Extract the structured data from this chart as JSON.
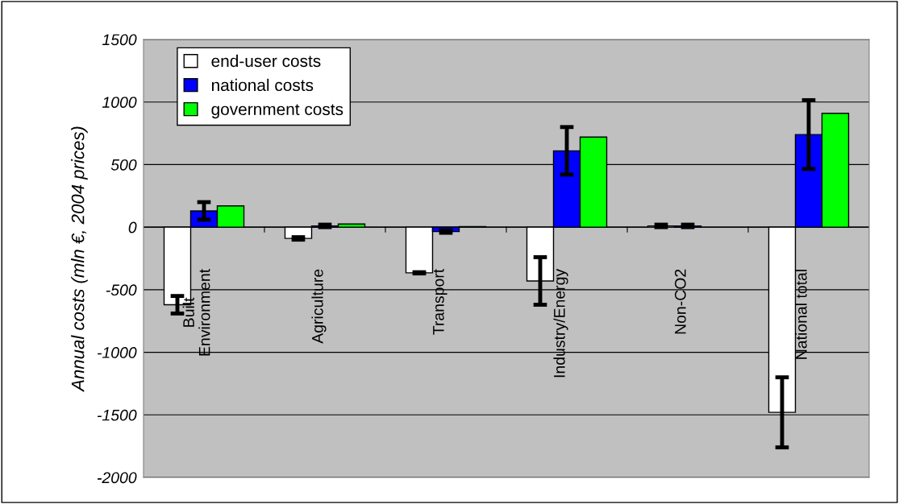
{
  "chart_data": {
    "type": "bar",
    "ylabel": "Annual costs (mln €, 2004 prices)",
    "categories": [
      "Built\nEnvironment",
      "Agriculture",
      "Transport",
      "Industry/Energy",
      "Non-CO2",
      "National total"
    ],
    "series": [
      {
        "name": "end-user costs",
        "color": "#ffffff",
        "values": [
          -620,
          -90,
          -365,
          -430,
          10,
          -1480
        ],
        "errors": [
          70,
          10,
          5,
          190,
          10,
          280
        ]
      },
      {
        "name": "national costs",
        "color": "#0000ff",
        "values": [
          130,
          10,
          -35,
          610,
          10,
          740
        ],
        "errors": [
          70,
          10,
          10,
          190,
          10,
          275
        ]
      },
      {
        "name": "government costs",
        "color": "#00ff00",
        "values": [
          170,
          25,
          5,
          720,
          null,
          910
        ]
      }
    ],
    "ylim": [
      -2000,
      1500
    ],
    "yticks": [
      -2000,
      -1500,
      -1000,
      -500,
      0,
      500,
      1000,
      1500
    ],
    "grid": "y",
    "legend": "top left"
  }
}
